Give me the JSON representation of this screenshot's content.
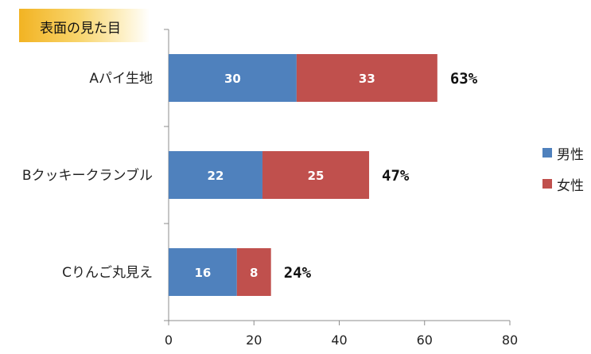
{
  "chart_data": {
    "type": "bar",
    "orientation": "horizontal",
    "stacked": true,
    "title": "表面の見た目",
    "categories": [
      "Aパイ生地",
      "Bクッキークランブル",
      "Cりんご丸見え"
    ],
    "series": [
      {
        "name": "男性",
        "values": [
          30,
          22,
          16
        ],
        "color": "#4f81bd"
      },
      {
        "name": "女性",
        "values": [
          33,
          25,
          8
        ],
        "color": "#c0504d"
      }
    ],
    "totals_labels": [
      "63%",
      "47%",
      "24%"
    ],
    "xlim": [
      0,
      80
    ],
    "xticks": [
      0,
      20,
      40,
      60,
      80
    ],
    "grid": false,
    "legend": "right"
  }
}
